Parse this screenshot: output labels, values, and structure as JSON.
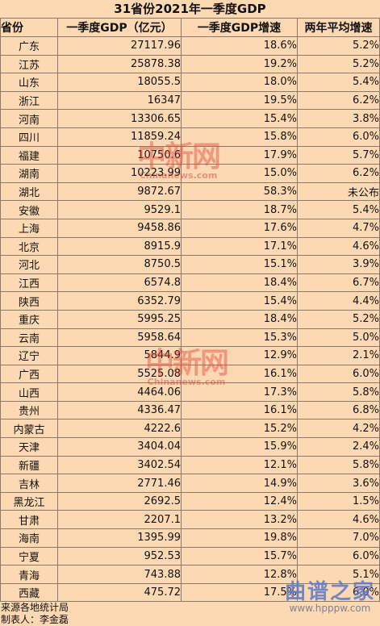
{
  "title": "31省份2021年一季度GDP",
  "headers": {
    "province": "省份",
    "gdp": "一季度GDP（亿元）",
    "growth": "一季度GDP增速",
    "two_year": "两年平均增速"
  },
  "rows": [
    {
      "province": "广东",
      "gdp": "27117.96",
      "growth": "18.6%",
      "two_year": "5.2%"
    },
    {
      "province": "江苏",
      "gdp": "25878.38",
      "growth": "19.2%",
      "two_year": "5.2%"
    },
    {
      "province": "山东",
      "gdp": "18055.5",
      "growth": "18.0%",
      "two_year": "5.4%"
    },
    {
      "province": "浙江",
      "gdp": "16347",
      "growth": "19.5%",
      "two_year": "6.2%"
    },
    {
      "province": "河南",
      "gdp": "13306.65",
      "growth": "15.4%",
      "two_year": "3.8%"
    },
    {
      "province": "四川",
      "gdp": "11859.24",
      "growth": "15.8%",
      "two_year": "6.0%"
    },
    {
      "province": "福建",
      "gdp": "10750.6",
      "growth": "17.9%",
      "two_year": "5.7%"
    },
    {
      "province": "湖南",
      "gdp": "10223.99",
      "growth": "15.0%",
      "two_year": "6.2%"
    },
    {
      "province": "湖北",
      "gdp": "9872.67",
      "growth": "58.3%",
      "two_year": "未公布"
    },
    {
      "province": "安徽",
      "gdp": "9529.1",
      "growth": "18.7%",
      "two_year": "5.4%"
    },
    {
      "province": "上海",
      "gdp": "9458.86",
      "growth": "17.6%",
      "two_year": "4.7%"
    },
    {
      "province": "北京",
      "gdp": "8915.9",
      "growth": "17.1%",
      "two_year": "4.6%"
    },
    {
      "province": "河北",
      "gdp": "8750.5",
      "growth": "15.1%",
      "two_year": "3.9%"
    },
    {
      "province": "江西",
      "gdp": "6574.8",
      "growth": "18.4%",
      "two_year": "6.7%"
    },
    {
      "province": "陕西",
      "gdp": "6352.79",
      "growth": "15.4%",
      "two_year": "4.4%"
    },
    {
      "province": "重庆",
      "gdp": "5995.25",
      "growth": "18.4%",
      "two_year": "5.2%"
    },
    {
      "province": "云南",
      "gdp": "5958.64",
      "growth": "15.3%",
      "two_year": "5.0%"
    },
    {
      "province": "辽宁",
      "gdp": "5844.9",
      "growth": "12.9%",
      "two_year": "2.1%"
    },
    {
      "province": "广西",
      "gdp": "5525.08",
      "growth": "16.1%",
      "two_year": "6.0%"
    },
    {
      "province": "山西",
      "gdp": "4464.06",
      "growth": "17.3%",
      "two_year": "5.8%"
    },
    {
      "province": "贵州",
      "gdp": "4336.47",
      "growth": "16.1%",
      "two_year": "6.8%"
    },
    {
      "province": "内蒙古",
      "gdp": "4222.6",
      "growth": "15.2%",
      "two_year": "4.2%"
    },
    {
      "province": "天津",
      "gdp": "3404.04",
      "growth": "15.9%",
      "two_year": "2.4%"
    },
    {
      "province": "新疆",
      "gdp": "3402.54",
      "growth": "12.1%",
      "two_year": "5.8%"
    },
    {
      "province": "吉林",
      "gdp": "2771.46",
      "growth": "14.9%",
      "two_year": "3.6%"
    },
    {
      "province": "黑龙江",
      "gdp": "2692.5",
      "growth": "12.4%",
      "two_year": "1.5%"
    },
    {
      "province": "甘肃",
      "gdp": "2207.1",
      "growth": "13.2%",
      "two_year": "4.6%"
    },
    {
      "province": "海南",
      "gdp": "1395.99",
      "growth": "19.8%",
      "two_year": "7.0%"
    },
    {
      "province": "宁夏",
      "gdp": "952.53",
      "growth": "15.7%",
      "two_year": "6.0%"
    },
    {
      "province": "青海",
      "gdp": "743.88",
      "growth": "12.8%",
      "two_year": "5.1%"
    },
    {
      "province": "西藏",
      "gdp": "475.72",
      "growth": "17.5%",
      "two_year": "6.0%"
    }
  ],
  "footer": {
    "source": "来源各地统计局",
    "author": "制表人：李金磊"
  },
  "watermark": {
    "logo": "中新网",
    "url": "Chinanews.com"
  },
  "site_logo": {
    "name": "曲谱之家",
    "url": "www.hpppw.com"
  }
}
